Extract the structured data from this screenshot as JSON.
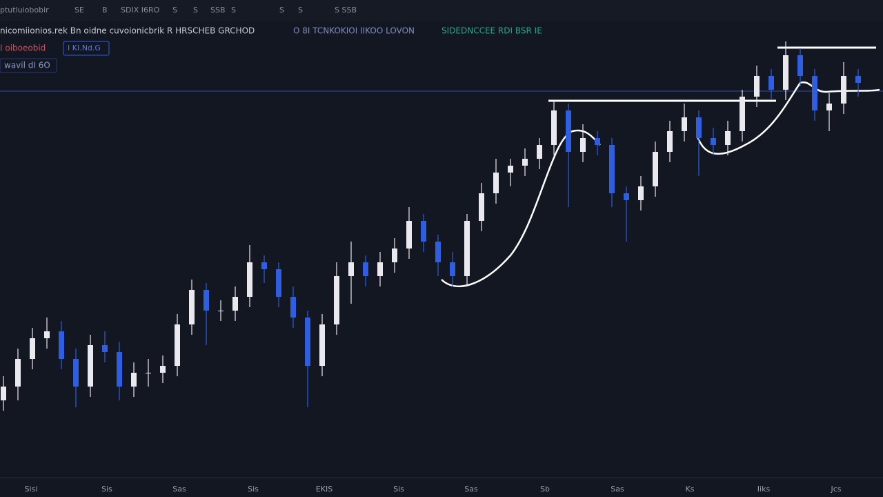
{
  "toolbar": [
    "ptutluiobobir",
    "SE",
    "B",
    "SDIX I6RO",
    "S",
    "S",
    "SSB",
    "S",
    "S",
    "S",
    "S SSB"
  ],
  "legend": {
    "line1": "nicomiionios.rek Bn oidne cuvoionicbrik R HRSCHEB GRCHOD",
    "line1b": "O 8I TCNKOKIOI IIKOO LOVON",
    "line1c": "SIDEDNCCEE RDI BSR IE",
    "line2": "I oiboeobid",
    "badge": "I KI.Nd.G",
    "line3": "wavil dI 6O"
  },
  "chart_data": {
    "type": "candlestick",
    "up_color": "#e9e9ef",
    "down_color": "#2f5fe0",
    "ylim": [
      0,
      640
    ],
    "x_labels": [
      "Sisi",
      "Sis",
      "Sas",
      "Sis",
      "EKIS",
      "Sis",
      "Sas",
      "Sb",
      "Sas",
      "Ks",
      "Iiks",
      "Jcs"
    ],
    "open": [
      120,
      140,
      180,
      210,
      220,
      180,
      140,
      200,
      190,
      140,
      160,
      160,
      170,
      230,
      280,
      250,
      250,
      270,
      320,
      310,
      270,
      240,
      170,
      230,
      300,
      320,
      300,
      320,
      340,
      380,
      350,
      320,
      300,
      380,
      420,
      450,
      460,
      470,
      490,
      540,
      480,
      500,
      490,
      420,
      410,
      430,
      480,
      510,
      530,
      500,
      490,
      510,
      560,
      590,
      570,
      620,
      590,
      540,
      550,
      590
    ],
    "high": [
      155,
      195,
      225,
      240,
      235,
      195,
      215,
      220,
      205,
      175,
      180,
      185,
      245,
      295,
      290,
      265,
      285,
      345,
      330,
      320,
      285,
      250,
      245,
      320,
      350,
      330,
      335,
      355,
      400,
      390,
      360,
      335,
      390,
      435,
      470,
      470,
      485,
      500,
      555,
      550,
      520,
      510,
      500,
      430,
      445,
      495,
      525,
      550,
      540,
      515,
      525,
      570,
      605,
      600,
      640,
      630,
      600,
      565,
      610,
      600
    ],
    "low": [
      105,
      120,
      165,
      195,
      165,
      110,
      125,
      175,
      120,
      125,
      140,
      145,
      155,
      215,
      200,
      235,
      235,
      255,
      290,
      255,
      225,
      110,
      155,
      215,
      260,
      285,
      285,
      305,
      325,
      335,
      300,
      285,
      285,
      365,
      405,
      430,
      445,
      455,
      475,
      400,
      465,
      475,
      400,
      350,
      395,
      415,
      465,
      495,
      445,
      475,
      475,
      495,
      545,
      555,
      555,
      575,
      525,
      510,
      535,
      560
    ],
    "close": [
      140,
      180,
      210,
      220,
      180,
      140,
      200,
      190,
      140,
      160,
      160,
      170,
      230,
      280,
      250,
      250,
      270,
      320,
      310,
      270,
      240,
      170,
      230,
      300,
      320,
      300,
      320,
      340,
      380,
      350,
      320,
      300,
      380,
      420,
      450,
      460,
      470,
      490,
      540,
      480,
      500,
      490,
      420,
      410,
      430,
      480,
      510,
      530,
      500,
      490,
      510,
      560,
      590,
      570,
      620,
      590,
      540,
      550,
      590,
      580
    ]
  }
}
